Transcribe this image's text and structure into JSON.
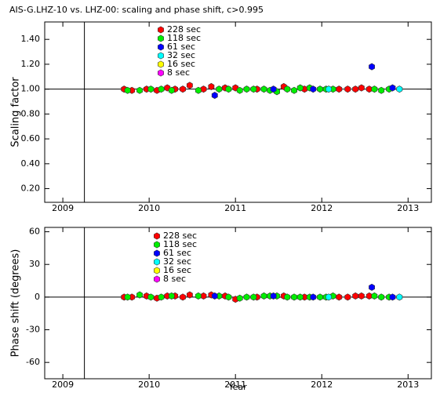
{
  "chart_data": [
    {
      "type": "scatter",
      "title": "AIS-G.LHZ-10 vs. LHZ-00: scaling and phase shift, c>0.995",
      "y_label": "Scaling factor",
      "xlim": [
        2008.79,
        2013.27
      ],
      "xticks": [
        2009,
        2010,
        2011,
        2012,
        2013
      ],
      "ylim": [
        0.09,
        1.54
      ],
      "yticks": [
        {
          "value": 0.2,
          "label": "0.20"
        },
        {
          "value": 0.4,
          "label": "0.40"
        },
        {
          "value": 0.6,
          "label": "0.60"
        },
        {
          "value": 0.8,
          "label": "0.80"
        },
        {
          "value": 1.0,
          "label": "1.00"
        },
        {
          "value": 1.2,
          "label": "1.20"
        },
        {
          "value": 1.4,
          "label": "1.40"
        }
      ],
      "vline": 2009.25,
      "hline": 1.0,
      "series": [
        {
          "name": "228 sec",
          "color": "#ff0000",
          "x": [
            2009.71,
            2009.8,
            2009.97,
            2010.09,
            2010.21,
            2010.3,
            2010.39,
            2010.47,
            2010.63,
            2010.72,
            2010.88,
            2011.0,
            2011.25,
            2011.56,
            2011.8,
            2012.2,
            2012.3,
            2012.39,
            2012.46,
            2012.55
          ],
          "values": [
            1.0,
            0.99,
            1.0,
            0.99,
            1.01,
            1.0,
            1.0,
            1.03,
            1.0,
            1.02,
            1.01,
            1.01,
            1.0,
            1.02,
            1.0,
            1.0,
            1.0,
            1.0,
            1.01,
            1.0
          ]
        },
        {
          "name": "118 sec",
          "color": "#00ee00",
          "x": [
            2009.75,
            2009.89,
            2010.02,
            2010.14,
            2010.26,
            2010.57,
            2010.81,
            2010.92,
            2011.05,
            2011.13,
            2011.21,
            2011.33,
            2011.4,
            2011.48,
            2011.6,
            2011.68,
            2011.75,
            2011.86,
            2011.98,
            2012.05,
            2012.13,
            2012.61,
            2012.69,
            2012.78
          ],
          "values": [
            0.99,
            0.99,
            1.0,
            1.0,
            0.99,
            0.99,
            1.0,
            1.0,
            0.99,
            1.0,
            1.0,
            1.0,
            0.99,
            0.98,
            1.0,
            0.99,
            1.01,
            1.01,
            1.0,
            1.0,
            1.0,
            1.0,
            0.99,
            1.0
          ]
        },
        {
          "name": "61 sec",
          "color": "#0000ff",
          "x": [
            2010.76,
            2011.44,
            2011.9,
            2012.58,
            2012.82
          ],
          "values": [
            0.95,
            1.0,
            1.0,
            1.18,
            1.01
          ]
        },
        {
          "name": "32 sec",
          "color": "#00ffff",
          "x": [
            2012.08,
            2012.9
          ],
          "values": [
            1.0,
            1.0
          ]
        },
        {
          "name": "16 sec",
          "color": "#ffff00",
          "x": [],
          "values": []
        },
        {
          "name": "8 sec",
          "color": "#ff00ff",
          "x": [],
          "values": []
        }
      ]
    },
    {
      "type": "scatter",
      "y_label": "Phase shift (degrees)",
      "x_label": "Year",
      "xlim": [
        2008.79,
        2013.27
      ],
      "xticks": [
        2009,
        2010,
        2011,
        2012,
        2013
      ],
      "ylim": [
        -75,
        64
      ],
      "yticks": [
        -60,
        -30,
        0,
        30,
        60
      ],
      "vline": 2009.25,
      "hline": 0,
      "series": [
        {
          "name": "228 sec",
          "color": "#ff0000",
          "x": [
            2009.71,
            2009.8,
            2009.97,
            2010.09,
            2010.21,
            2010.3,
            2010.39,
            2010.47,
            2010.63,
            2010.72,
            2010.88,
            2011.0,
            2011.25,
            2011.56,
            2011.8,
            2012.2,
            2012.3,
            2012.39,
            2012.46,
            2012.55
          ],
          "values": [
            0,
            0,
            1,
            -1,
            1,
            1,
            0,
            2,
            1,
            2,
            1,
            -2,
            0,
            1,
            0,
            0,
            0,
            1,
            1,
            1
          ]
        },
        {
          "name": "118 sec",
          "color": "#00ee00",
          "x": [
            2009.75,
            2009.89,
            2010.02,
            2010.14,
            2010.26,
            2010.57,
            2010.81,
            2010.92,
            2011.05,
            2011.13,
            2011.21,
            2011.33,
            2011.4,
            2011.48,
            2011.6,
            2011.68,
            2011.75,
            2011.86,
            2011.98,
            2012.05,
            2012.13,
            2012.61,
            2012.69,
            2012.78
          ],
          "values": [
            0,
            2,
            0,
            0,
            1,
            1,
            1,
            0,
            -1,
            0,
            0,
            1,
            1,
            1,
            0,
            0,
            0,
            0,
            0,
            0,
            1,
            1,
            0,
            0
          ]
        },
        {
          "name": "61 sec",
          "color": "#0000ff",
          "x": [
            2010.76,
            2011.44,
            2011.9,
            2012.58,
            2012.82
          ],
          "values": [
            1,
            1,
            0,
            9,
            0
          ]
        },
        {
          "name": "32 sec",
          "color": "#00ffff",
          "x": [
            2012.08,
            2012.9
          ],
          "values": [
            0,
            0
          ]
        },
        {
          "name": "16 sec",
          "color": "#ffff00",
          "x": [],
          "values": []
        },
        {
          "name": "8 sec",
          "color": "#ff00ff",
          "x": [],
          "values": []
        }
      ]
    }
  ]
}
